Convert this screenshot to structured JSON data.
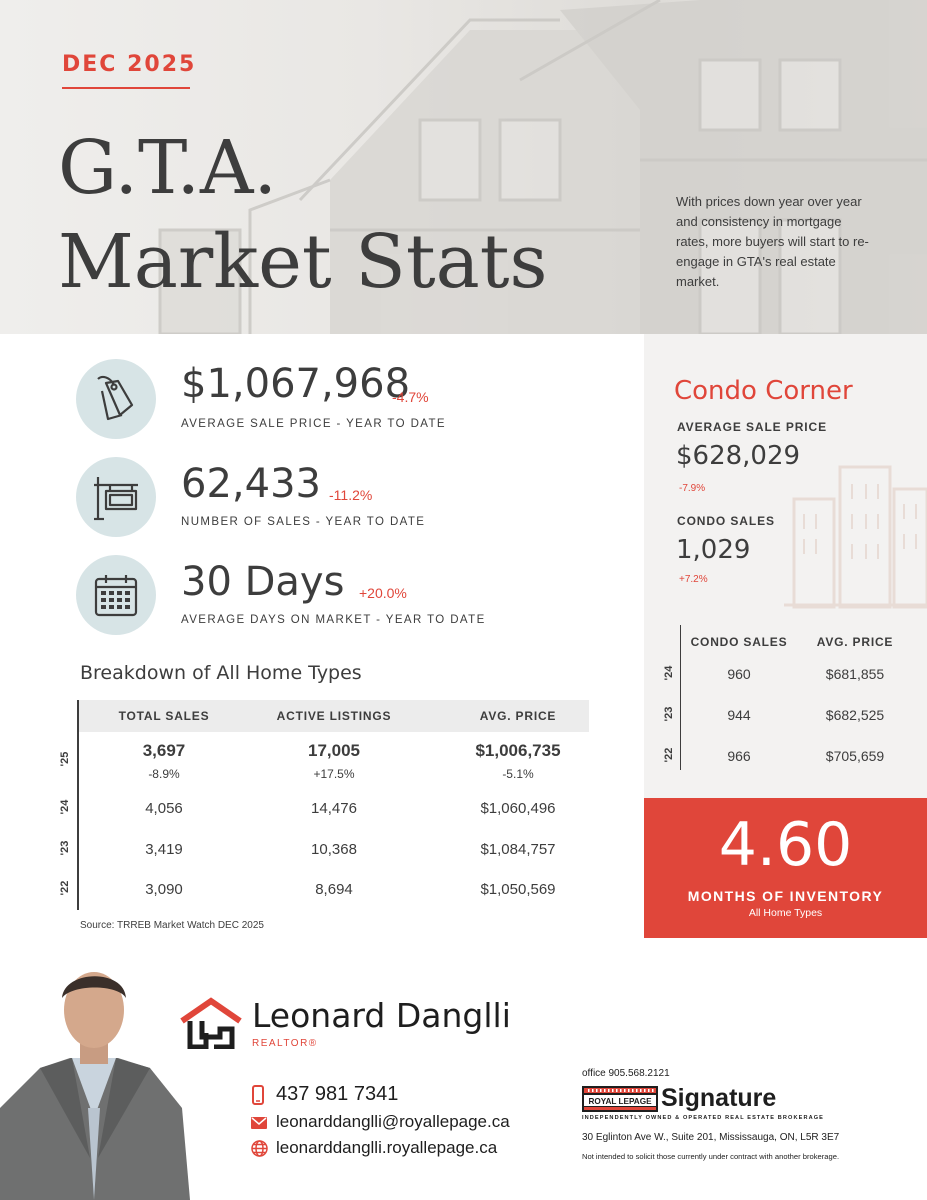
{
  "hero": {
    "date": "DEC 2025",
    "title_line1": "G.T.A.",
    "title_line2": "Market Stats",
    "blurb": "With prices down year over year and consistency in mortgage rates, more buyers will start to re-engage in GTA's real estate market."
  },
  "stats": [
    {
      "icon": "price-tag-icon",
      "value": "$1,067,968",
      "change": "-4.7%",
      "caption": "AVERAGE SALE PRICE - YEAR TO DATE"
    },
    {
      "icon": "for-sale-sign-icon",
      "value": "62,433",
      "change": "-11.2%",
      "caption": "NUMBER OF SALES - YEAR TO DATE"
    },
    {
      "icon": "calendar-icon",
      "value": "30 Days",
      "change": "+20.0%",
      "caption": "AVERAGE DAYS ON MARKET - YEAR TO DATE"
    }
  ],
  "breakdown": {
    "title": "Breakdown of All Home Types",
    "columns": [
      "TOTAL SALES",
      "ACTIVE LISTINGS",
      "AVG. PRICE"
    ],
    "rows": [
      {
        "year": "'25",
        "values": [
          "3,697",
          "17,005",
          "$1,006,735"
        ],
        "changes": [
          "-8.9%",
          "+17.5%",
          "-5.1%"
        ]
      },
      {
        "year": "'24",
        "values": [
          "4,056",
          "14,476",
          "$1,060,496"
        ]
      },
      {
        "year": "'23",
        "values": [
          "3,419",
          "10,368",
          "$1,084,757"
        ]
      },
      {
        "year": "'22",
        "values": [
          "3,090",
          "8,694",
          "$1,050,569"
        ]
      }
    ],
    "source": "Source: TRREB Market Watch DEC 2025"
  },
  "condo": {
    "title": "Condo Corner",
    "avg_price_label": "AVERAGE SALE PRICE",
    "avg_price_value": "$628,029",
    "avg_price_change": "-7.9%",
    "sales_label": "CONDO SALES",
    "sales_value": "1,029",
    "sales_change": "+7.2%",
    "columns": [
      "CONDO SALES",
      "AVG. PRICE"
    ],
    "rows": [
      {
        "year": "'24",
        "values": [
          "960",
          "$681,855"
        ]
      },
      {
        "year": "'23",
        "values": [
          "944",
          "$682,525"
        ]
      },
      {
        "year": "'22",
        "values": [
          "966",
          "$705,659"
        ]
      }
    ]
  },
  "inventory": {
    "value": "4.60",
    "label": "MONTHS OF INVENTORY",
    "sublabel": "All Home Types"
  },
  "agent": {
    "name": "Leonard Danglli",
    "role": "REALTOR®",
    "phone": "437 981 7341",
    "email": "leonarddanglli@royallepage.ca",
    "website": "leonarddanglli.royallepage.ca"
  },
  "brokerage": {
    "office_phone": "office 905.568.2121",
    "brand_royal": "ROYAL LEPAGE",
    "brand_signature": "Signature",
    "tagline": "INDEPENDENTLY OWNED & OPERATED REAL ESTATE BROKERAGE",
    "address": "30 Eglinton Ave W., Suite 201, Mississauga, ON, L5R 3E7",
    "disclaimer": "Not intended to solicit those currently under contract with another brokerage."
  },
  "colors": {
    "accent": "#e0463a",
    "text": "#3d3d3d",
    "icon_circle": "#d7e4e6",
    "panel": "#f3f2f1"
  }
}
